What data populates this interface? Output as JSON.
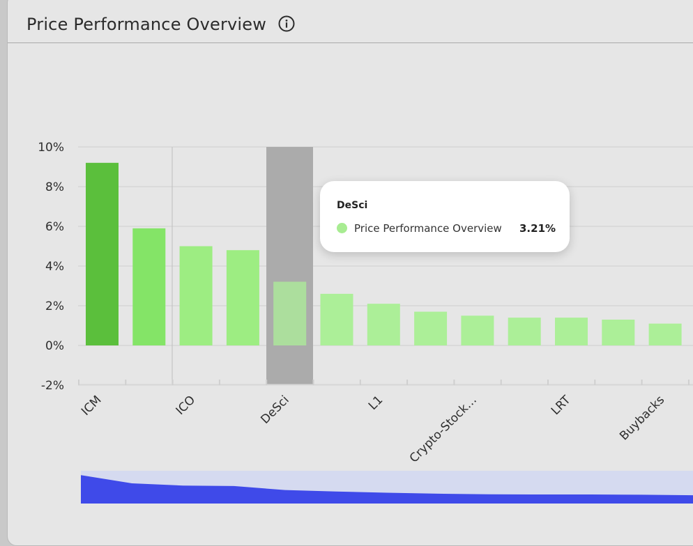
{
  "card": {
    "title": "Price Performance Overview",
    "info_icon": "info-circle-icon"
  },
  "tooltip": {
    "category": "DeSci",
    "series_name": "Price Performance Overview",
    "value": "3.21%",
    "dot_color": "#a8ec92"
  },
  "colors": {
    "top_bar": "#5bbf3c",
    "bar_strong": "#84e467",
    "bar_mid": "#9ded82",
    "bar_light": "#acef98",
    "highlight": "#ababab",
    "navigator_fill": "#3f4ae9",
    "navigator_bg": "#d5daf0"
  },
  "chart_data": {
    "type": "bar",
    "categories": [
      "ICM",
      "",
      "ICO",
      "",
      "DeSci",
      "",
      "L1",
      "",
      "Crypto-Stock…",
      "",
      "LRT",
      "",
      "Buybacks"
    ],
    "values": [
      9.2,
      5.9,
      5.0,
      4.8,
      3.21,
      2.6,
      2.1,
      1.7,
      1.5,
      1.4,
      1.4,
      1.3,
      1.1
    ],
    "y_ticks": [
      "10%",
      "8%",
      "6%",
      "4%",
      "2%",
      "0%",
      "-2%"
    ],
    "ylim": [
      -2,
      10
    ],
    "highlighted_category": "DeSci",
    "grid": true
  }
}
